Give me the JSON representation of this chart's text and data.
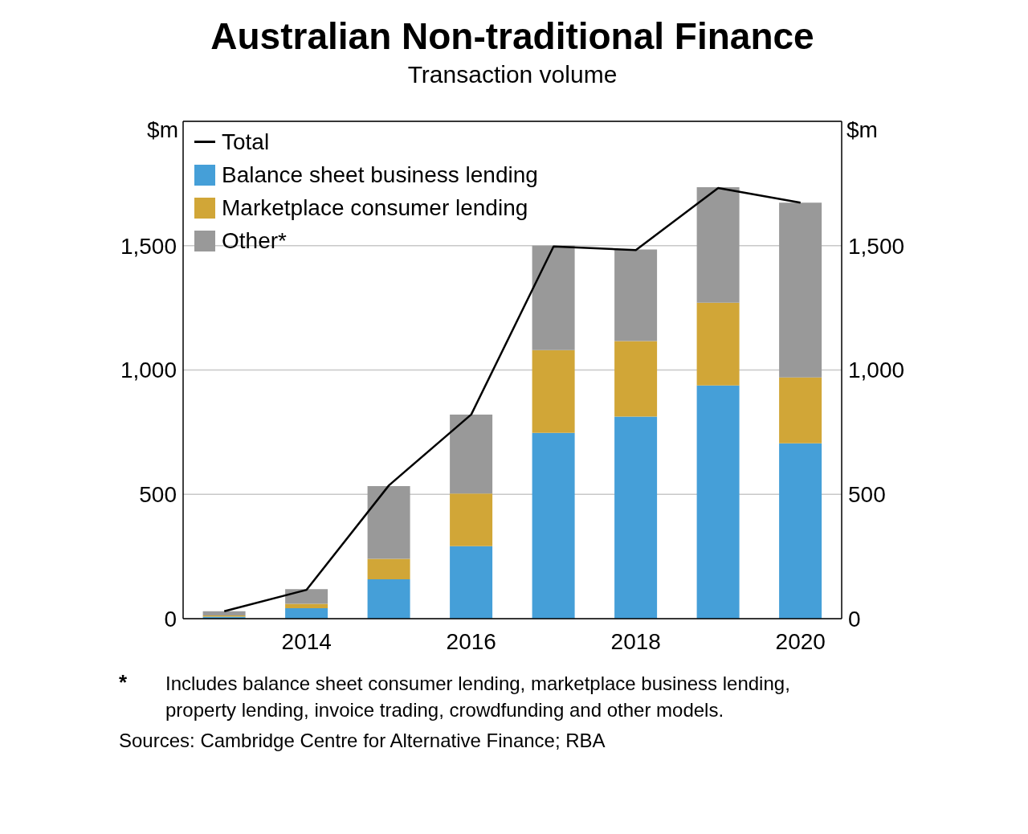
{
  "chart_data": {
    "type": "bar",
    "title": "Australian Non-traditional Finance",
    "subtitle": "Transaction volume",
    "ylabel": "$m",
    "y2label": "$m",
    "categories": [
      null,
      "2014",
      null,
      "2016",
      null,
      "2018",
      null,
      "2020"
    ],
    "series": [
      {
        "name": "Total",
        "type": "line",
        "color": "#000000",
        "values": [
          30,
          116,
          536,
          821,
          1497,
          1482,
          1732,
          1673
        ]
      },
      {
        "name": "Balance sheet business lending",
        "color": "#459fd8",
        "values": [
          8,
          42,
          158,
          292,
          747,
          813,
          938,
          705
        ]
      },
      {
        "name": "Marketplace consumer lending",
        "color": "#d1a637",
        "values": [
          5,
          18,
          83,
          211,
          333,
          303,
          333,
          265
        ]
      },
      {
        "name": "Other*",
        "color": "#999999",
        "values": [
          17,
          59,
          292,
          318,
          420,
          369,
          464,
          703
        ]
      }
    ],
    "stacked": true,
    "ylim": [
      0,
      2000
    ],
    "yticks": [
      0,
      500,
      {
        "value": 1000,
        "label": "1,000"
      },
      {
        "value": 1500,
        "label": "1,500"
      }
    ],
    "y2lim": [
      0,
      2000
    ],
    "y2ticks": [
      0,
      500,
      {
        "value": 1000,
        "label": "1,000"
      },
      {
        "value": 1500,
        "label": "1,500"
      }
    ],
    "grid": "y",
    "legend": "top left",
    "marker": "none",
    "annotations": [
      "*",
      "Includes balance sheet consumer lending, marketplace business lending, property lending, invoice trading, crowdfunding and other models.",
      "Sources: Cambridge Centre for Alternative Finance; RBA"
    ]
  }
}
